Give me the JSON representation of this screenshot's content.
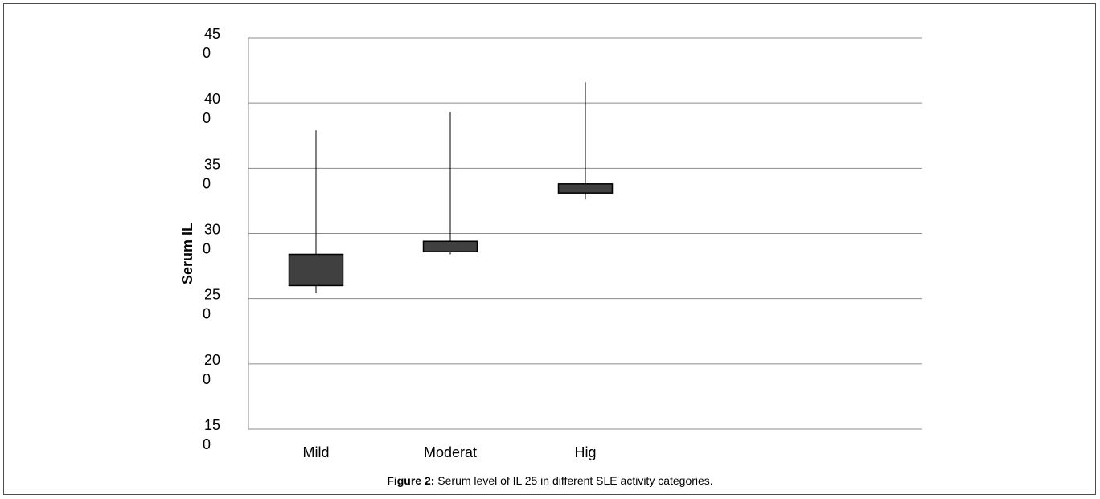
{
  "chart_data": {
    "type": "box",
    "ylabel": "Serum IL",
    "xlabel": "",
    "ylim": [
      150,
      450
    ],
    "grid": true,
    "y_ticks": [
      {
        "value": 450,
        "line1": "45",
        "line2": "0"
      },
      {
        "value": 400,
        "line1": "40",
        "line2": "0"
      },
      {
        "value": 350,
        "line1": "35",
        "line2": "0"
      },
      {
        "value": 300,
        "line1": "30",
        "line2": "0"
      },
      {
        "value": 250,
        "line1": "25",
        "line2": "0"
      },
      {
        "value": 200,
        "line1": "20",
        "line2": "0"
      },
      {
        "value": 150,
        "line1": "15",
        "line2": "0"
      }
    ],
    "categories": [
      "Mild",
      "Moderat",
      "Hig"
    ],
    "boxes": [
      {
        "category": "Mild",
        "whisker_low": 254,
        "box_low": 260,
        "box_high": 284,
        "whisker_high": 379
      },
      {
        "category": "Moderat",
        "whisker_low": 284,
        "box_low": 286,
        "box_high": 294,
        "whisker_high": 393
      },
      {
        "category": "Hig",
        "whisker_low": 326,
        "box_low": 331,
        "box_high": 338,
        "whisker_high": 416
      }
    ],
    "colors": {
      "box_fill": "#404040",
      "box_stroke": "#000000",
      "grid": "#8c8c8c",
      "axis": "#8c8c8c"
    }
  },
  "caption": {
    "label": "Figure 2:",
    "text": " Serum level of IL 25 in different SLE activity categories."
  }
}
